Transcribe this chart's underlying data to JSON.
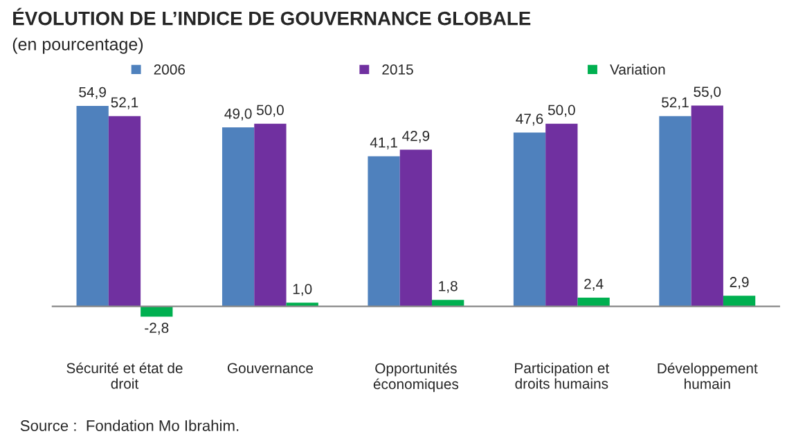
{
  "chart_data": {
    "type": "bar",
    "title": "ÉVOLUTION DE L’INDICE DE GOUVERNANCE GLOBALE",
    "subtitle": "(en pourcentage)",
    "categories": [
      "Sécurité et état de droit",
      "Gouvernance",
      "Opportunités économiques",
      "Participation et droits humains",
      "Développement humain"
    ],
    "series": [
      {
        "name": "2006",
        "color": "#4f81bd",
        "values": [
          54.9,
          49.0,
          41.1,
          47.6,
          52.1
        ],
        "value_labels": [
          "54,9",
          "49,0",
          "41,1",
          "47,6",
          "52,1"
        ]
      },
      {
        "name": "2015",
        "color": "#7030a0",
        "values": [
          52.1,
          50.0,
          42.9,
          50.0,
          55.0
        ],
        "value_labels": [
          "52,1",
          "50,0",
          "42,9",
          "50,0",
          "55,0"
        ]
      },
      {
        "name": "Variation",
        "color": "#00b050",
        "values": [
          -2.8,
          1.0,
          1.8,
          2.4,
          2.9
        ],
        "value_labels": [
          "-2,8",
          "1,0",
          "1,8",
          "2,4",
          "2,9"
        ]
      }
    ],
    "legend": "top",
    "grid": false,
    "annotations": [
      "Source :  Fondation Mo Ibrahim."
    ]
  }
}
